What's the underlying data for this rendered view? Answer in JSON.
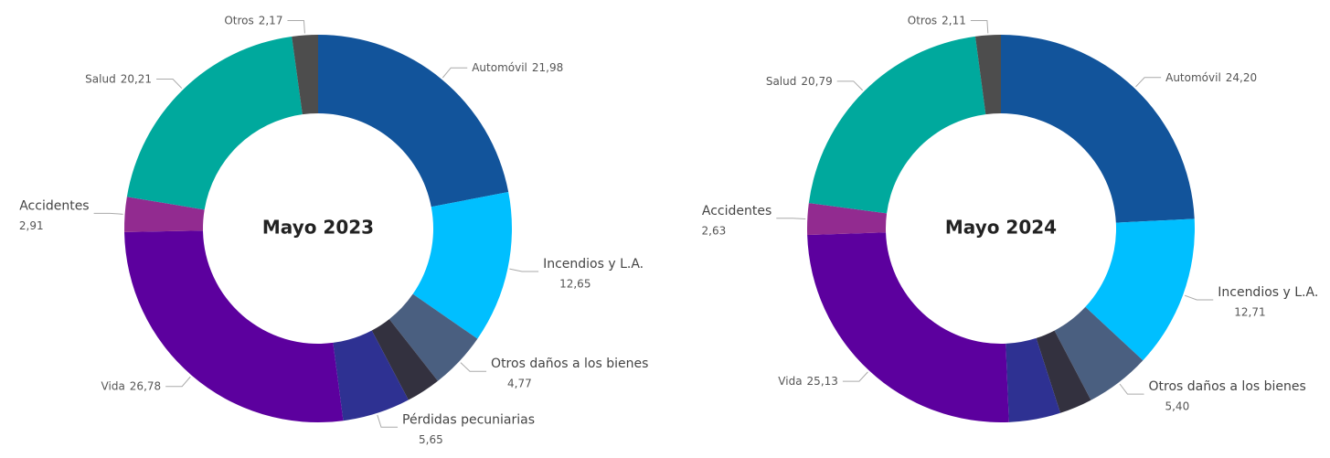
{
  "chart_data": [
    {
      "type": "donut",
      "title": "Mayo 2023",
      "categories": [
        "Automóvil",
        "Incendios y L.A.",
        "Otros daños a los bienes",
        null,
        "Pérdidas pecuniarias",
        "Vida",
        "Accidentes",
        "Salud",
        "Otros"
      ],
      "values": [
        21.98,
        12.65,
        4.77,
        2.88,
        5.65,
        26.78,
        2.91,
        20.21,
        2.17
      ],
      "value_labels": [
        "21,98",
        "12,65",
        "4,77",
        null,
        "5,65",
        "26,78",
        "2,91",
        "20,21",
        "2,17"
      ],
      "colors": [
        "#12549b",
        "#00bfff",
        "#4a5f80",
        "#33313f",
        "#2e3192",
        "#5c009e",
        "#922b90",
        "#00a99d",
        "#4d4d4d"
      ]
    },
    {
      "type": "donut",
      "title": "Mayo 2024",
      "categories": [
        "Automóvil",
        "Incendios y L.A.",
        "Otros daños a los bienes",
        null,
        null,
        "Vida",
        "Accidentes",
        "Salud",
        "Otros"
      ],
      "values": [
        24.2,
        12.71,
        5.4,
        2.73,
        4.3,
        25.13,
        2.63,
        20.79,
        2.11
      ],
      "value_labels": [
        "24,20",
        "12,71",
        "5,40",
        null,
        null,
        "25,13",
        "2,63",
        "20,79",
        "2,11"
      ],
      "colors": [
        "#12549b",
        "#00bfff",
        "#4a5f80",
        "#33313f",
        "#2e3192",
        "#5c009e",
        "#922b90",
        "#00a99d",
        "#4d4d4d"
      ]
    }
  ]
}
